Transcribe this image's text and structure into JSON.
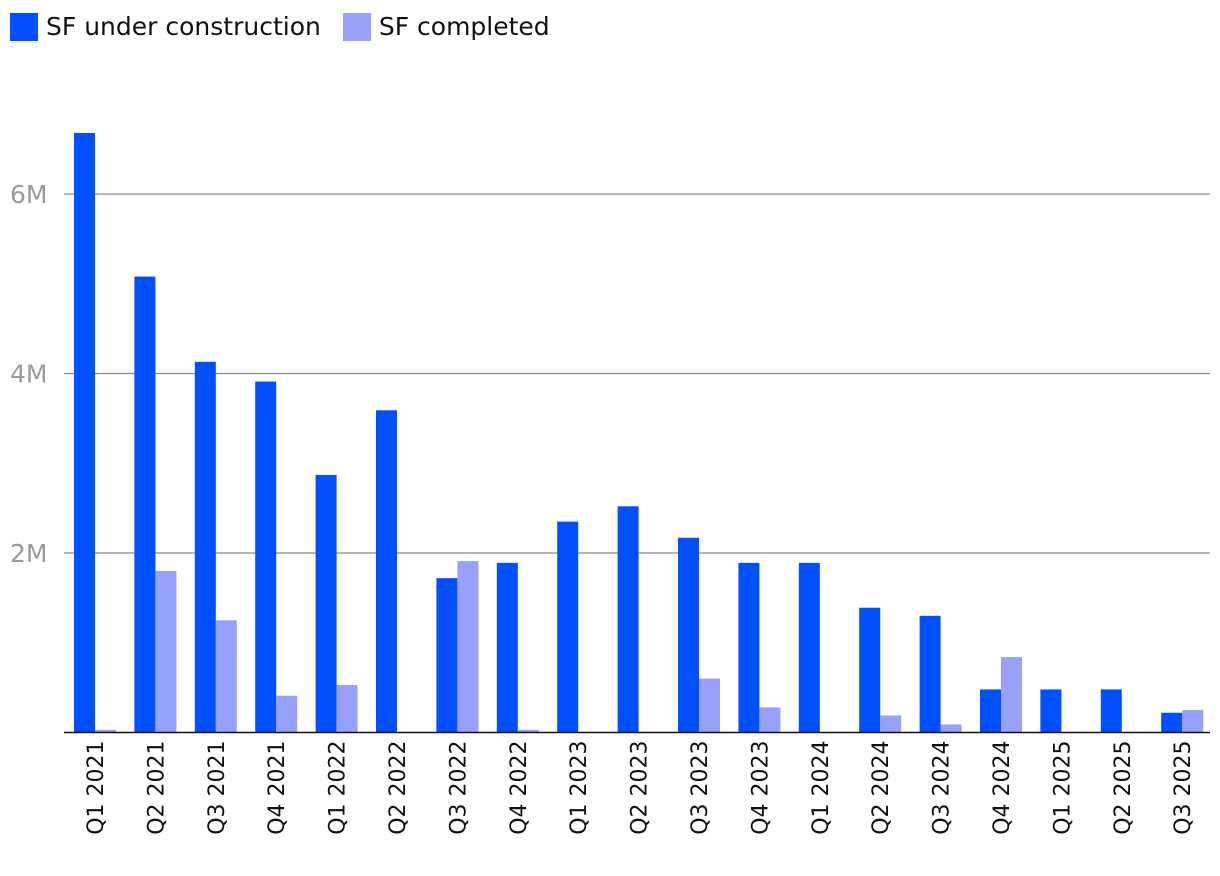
{
  "legend": {
    "items": [
      {
        "label": "SF under construction",
        "color": "#0050ff"
      },
      {
        "label": "SF completed",
        "color": "#97a0fb"
      }
    ]
  },
  "chart_data": {
    "type": "bar",
    "categories": [
      "Q1 2021",
      "Q2 2021",
      "Q3 2021",
      "Q4 2021",
      "Q1 2022",
      "Q2 2022",
      "Q3 2022",
      "Q4 2022",
      "Q1 2023",
      "Q2 2023",
      "Q3 2023",
      "Q4 2023",
      "Q1 2024",
      "Q2 2024",
      "Q3 2024",
      "Q4 2024",
      "Q1 2025",
      "Q2 2025",
      "Q3 2025"
    ],
    "series": [
      {
        "name": "SF under construction",
        "color": "#0050ff",
        "values": [
          6680000,
          5080000,
          4130000,
          3910000,
          2870000,
          3590000,
          1720000,
          1890000,
          2350000,
          2520000,
          2170000,
          1890000,
          1890000,
          1390000,
          1300000,
          480000,
          480000,
          480000,
          220000
        ]
      },
      {
        "name": "SF completed",
        "color": "#97a0fb",
        "values": [
          30000,
          1800000,
          1250000,
          410000,
          530000,
          0,
          1910000,
          30000,
          0,
          0,
          600000,
          280000,
          0,
          190000,
          90000,
          840000,
          0,
          0,
          250000
        ]
      }
    ],
    "yticks": [
      {
        "value": 2000000,
        "label": "2M"
      },
      {
        "value": 4000000,
        "label": "4M"
      },
      {
        "value": 6000000,
        "label": "6M"
      }
    ],
    "ylim": [
      0,
      6700000
    ],
    "grid": true,
    "legend_position": "top-left",
    "xlabel": "",
    "ylabel": ""
  }
}
